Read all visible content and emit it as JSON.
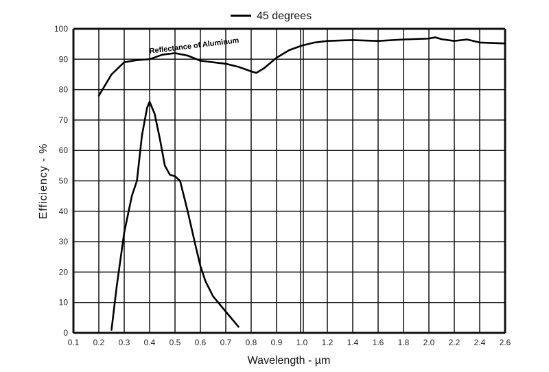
{
  "chart_data": {
    "type": "line",
    "title": "",
    "xlabel": "Wavelength - µm",
    "ylabel": "Efficiency - %",
    "ylim": [
      0,
      100
    ],
    "xlim": [
      0.1,
      2.6
    ],
    "x_scale_note": "piecewise: 0.1 steps up to 1.0, 0.2 steps from 1.0 to 2.6",
    "x_ticks": [
      "0.1",
      "0.2",
      "0.3",
      "0.4",
      "0.5",
      "0.6",
      "0.7",
      "0.8",
      "0.9",
      "1.0",
      "1.2",
      "1.4",
      "1.6",
      "1.8",
      "2.0",
      "2.2",
      "2.4",
      "2.6"
    ],
    "y_ticks": [
      "0",
      "10",
      "20",
      "30",
      "40",
      "50",
      "60",
      "70",
      "80",
      "90",
      "100"
    ],
    "grid": true,
    "legend": {
      "placement": "top-center",
      "entries": [
        "45 degrees"
      ]
    },
    "annotations": [
      "Reflectance of Aluminum"
    ],
    "series": [
      {
        "name": "Reflectance of Aluminum",
        "x": [
          0.2,
          0.25,
          0.3,
          0.35,
          0.4,
          0.45,
          0.5,
          0.55,
          0.6,
          0.7,
          0.75,
          0.8,
          0.82,
          0.85,
          0.9,
          0.95,
          1.0,
          1.1,
          1.2,
          1.4,
          1.6,
          1.8,
          2.0,
          2.05,
          2.1,
          2.2,
          2.3,
          2.4,
          2.6
        ],
        "y": [
          78,
          85,
          89,
          89.7,
          90,
          91.5,
          92,
          91.2,
          89.5,
          88.5,
          87.5,
          86,
          85.5,
          87,
          90.5,
          93,
          94.5,
          95.5,
          96,
          96.3,
          96,
          96.5,
          96.8,
          97.2,
          96.6,
          96,
          96.5,
          95.5,
          95.2
        ]
      },
      {
        "name": "45 degrees",
        "x": [
          0.25,
          0.27,
          0.3,
          0.33,
          0.35,
          0.37,
          0.39,
          0.4,
          0.42,
          0.44,
          0.46,
          0.48,
          0.5,
          0.52,
          0.55,
          0.58,
          0.6,
          0.62,
          0.65,
          0.7,
          0.75
        ],
        "y": [
          1,
          15,
          33,
          45,
          50,
          65,
          74,
          76,
          72,
          64,
          55,
          52,
          51.5,
          50,
          40,
          29,
          22,
          17,
          12,
          7,
          2
        ]
      }
    ]
  }
}
